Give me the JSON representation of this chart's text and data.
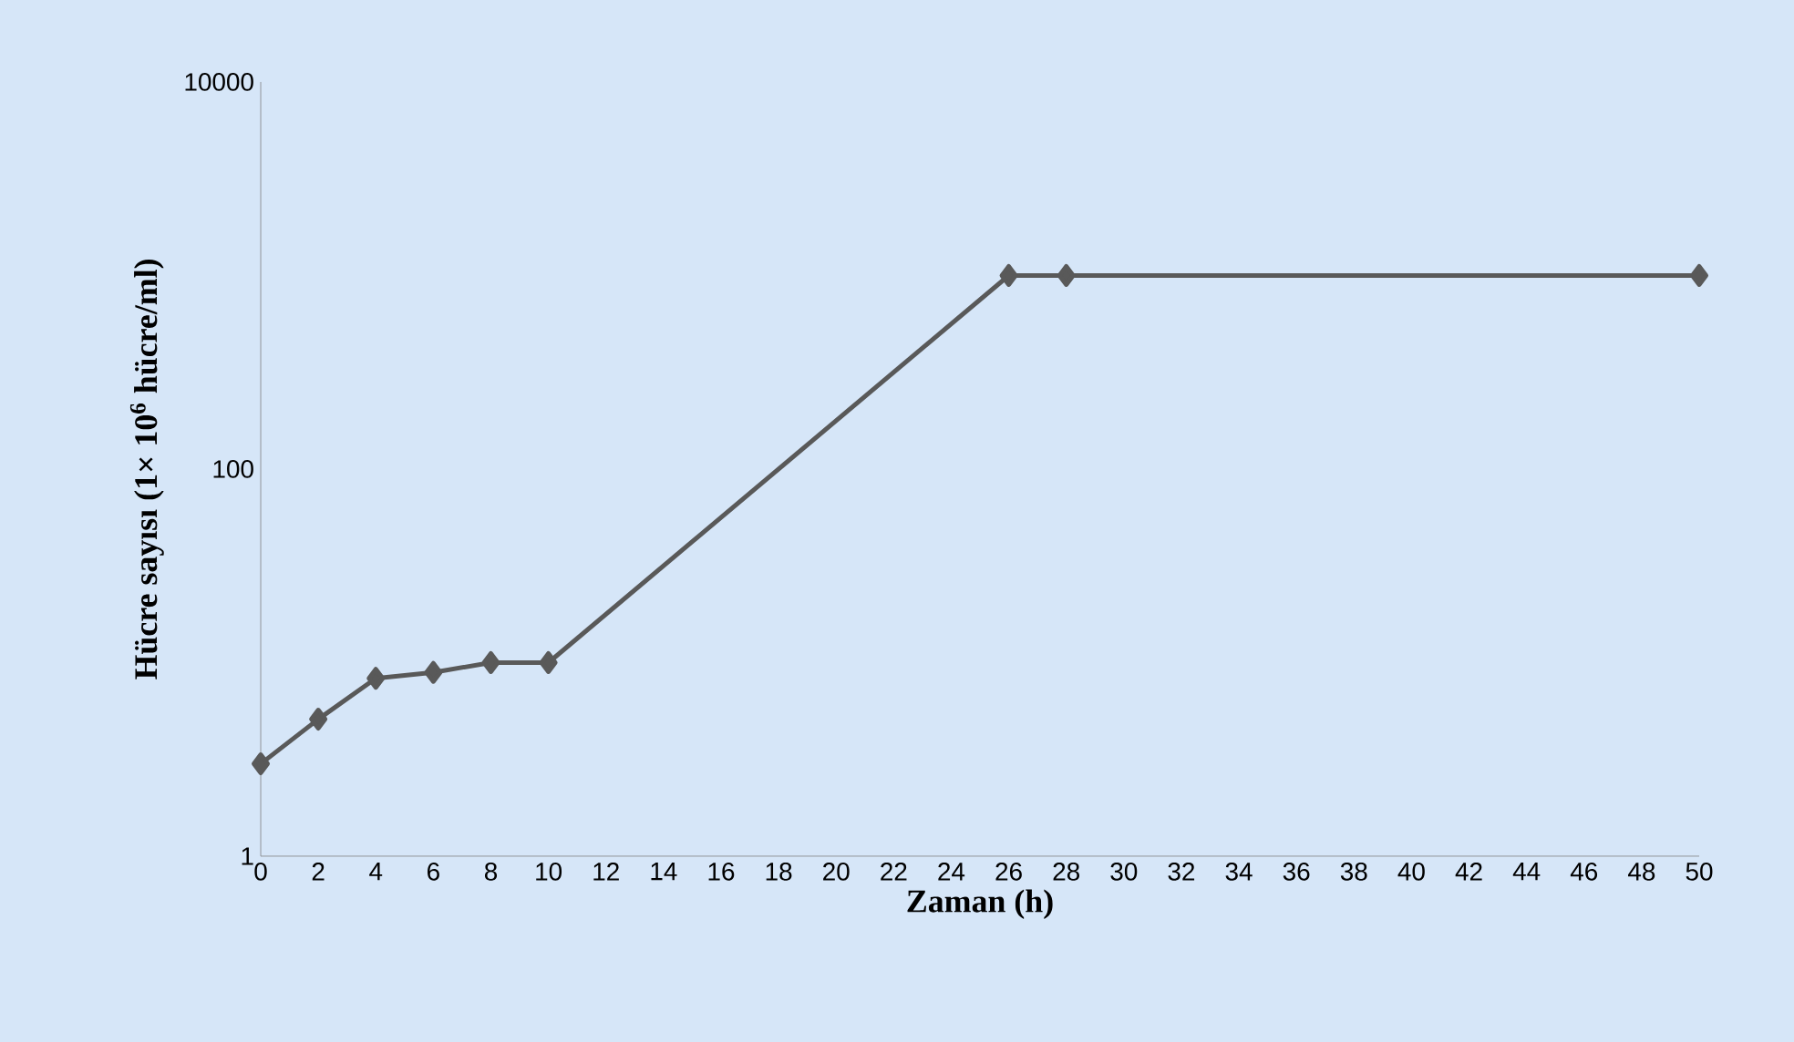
{
  "chart_data": {
    "type": "line",
    "xlabel": "Zaman (h)",
    "ylabel": "Hücre sayısı (1× 10$^{6}$ hücre/ml)",
    "x": [
      0,
      2,
      4,
      6,
      8,
      10,
      26,
      28,
      50
    ],
    "series": [
      {
        "color": "#595959",
        "values": [
          3,
          5.1,
          8.3,
          8.9,
          10,
          10,
          1000,
          1000,
          1000
        ]
      }
    ],
    "xlim": [
      0,
      50
    ],
    "xticks": [
      0,
      2,
      4,
      6,
      8,
      10,
      12,
      14,
      16,
      18,
      20,
      22,
      24,
      26,
      28,
      30,
      32,
      34,
      36,
      38,
      40,
      42,
      44,
      46,
      48,
      50
    ],
    "ylim": [
      1,
      10000
    ],
    "yticks": [
      1,
      100,
      10000
    ],
    "log": true,
    "grid": false,
    "marker": "diamond",
    "line_style": "solid"
  }
}
